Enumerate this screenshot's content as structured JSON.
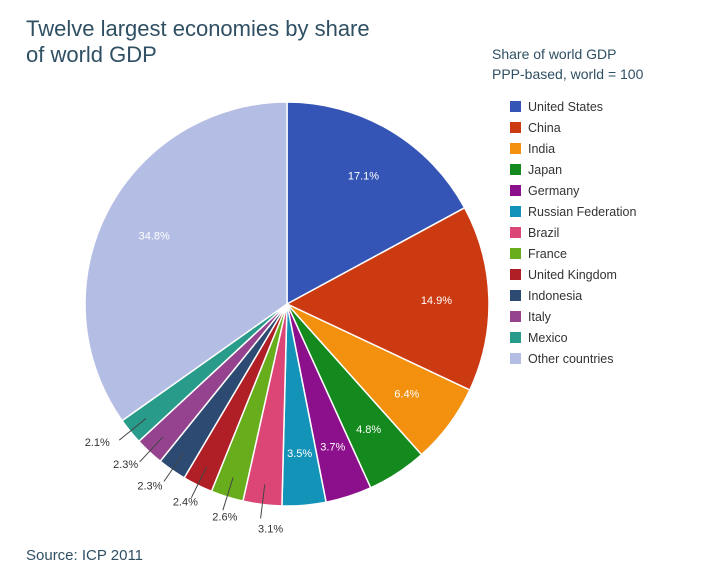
{
  "header": {
    "title_line1": "Twelve largest economies by share",
    "title_line2": "of world GDP"
  },
  "legend": {
    "title_line1": "Share of world GDP",
    "title_line2": "PPP-based, world = 100"
  },
  "footer": {
    "source": "Source: ICP 2011"
  },
  "chart_data": {
    "type": "pie",
    "title": "Twelve largest economies by share of world GDP",
    "subtitle": "Share of world GDP PPP-based, world = 100",
    "legend_position": "right",
    "start_angle": "12 o'clock, clockwise",
    "slices": [
      {
        "name": "United States",
        "value": 17.1,
        "label": "17.1%",
        "color": "#3455b5",
        "label_placement": "inside"
      },
      {
        "name": "China",
        "value": 14.9,
        "label": "14.9%",
        "color": "#cc3a12",
        "label_placement": "inside"
      },
      {
        "name": "India",
        "value": 6.4,
        "label": "6.4%",
        "color": "#f3910f",
        "label_placement": "inside"
      },
      {
        "name": "Japan",
        "value": 4.8,
        "label": "4.8%",
        "color": "#14891d",
        "label_placement": "inside"
      },
      {
        "name": "Germany",
        "value": 3.7,
        "label": "3.7%",
        "color": "#8c0f8c",
        "label_placement": "inside"
      },
      {
        "name": "Russian Federation",
        "value": 3.5,
        "label": "3.5%",
        "color": "#1493b8",
        "label_placement": "inside"
      },
      {
        "name": "Brazil",
        "value": 3.1,
        "label": "3.1%",
        "color": "#dc4677",
        "label_placement": "outside"
      },
      {
        "name": "France",
        "value": 2.6,
        "label": "2.6%",
        "color": "#68ad1b",
        "label_placement": "outside"
      },
      {
        "name": "United Kingdom",
        "value": 2.4,
        "label": "2.4%",
        "color": "#b01f25",
        "label_placement": "outside"
      },
      {
        "name": "Indonesia",
        "value": 2.3,
        "label": "2.3%",
        "color": "#2d4a72",
        "label_placement": "outside"
      },
      {
        "name": "Italy",
        "value": 2.3,
        "label": "2.3%",
        "color": "#96438f",
        "label_placement": "outside"
      },
      {
        "name": "Mexico",
        "value": 2.1,
        "label": "2.1%",
        "color": "#289b8b",
        "label_placement": "outside"
      },
      {
        "name": "Other countries",
        "value": 34.8,
        "label": "34.8%",
        "color": "#b4bde3",
        "label_placement": "inside"
      }
    ]
  }
}
